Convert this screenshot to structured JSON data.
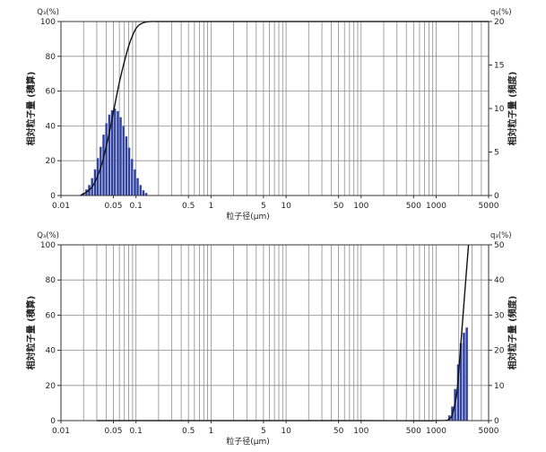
{
  "chart_data": [
    {
      "type": "bar",
      "x_scale": "log",
      "xlim": [
        0.01,
        5000
      ],
      "x_ticks": [
        0.01,
        0.05,
        0.1,
        0.5,
        1,
        5,
        10,
        50,
        100,
        500,
        1000,
        5000
      ],
      "x_tick_labels": [
        "0.01",
        "0.05",
        "0.1",
        "0.5",
        "1",
        "5",
        "10",
        "50",
        "100",
        "500",
        "1000",
        "5000"
      ],
      "xlabel": "粒子径(μm)",
      "y_left_label": "相対粒子量 (積算)",
      "y_left_unit": "Q₃(%)",
      "y_left_lim": [
        0,
        100
      ],
      "y_left_ticks": [
        0,
        20,
        40,
        60,
        80,
        100
      ],
      "y_right_label": "相対粒子量 (頻度)",
      "y_right_unit": "q₃(%)",
      "y_right_lim": [
        0,
        20
      ],
      "y_right_ticks": [
        0,
        5,
        10,
        15,
        20
      ],
      "grid": true,
      "series": [
        {
          "kind": "frequency_bars",
          "axis": "right",
          "x": [
            0.02,
            0.0218,
            0.0238,
            0.026,
            0.0284,
            0.031,
            0.0338,
            0.0369,
            0.0403,
            0.044,
            0.048,
            0.0524,
            0.0572,
            0.0624,
            0.0681,
            0.0743,
            0.0811,
            0.0885,
            0.0966,
            0.1054,
            0.115,
            0.1255,
            0.137
          ],
          "values": [
            0.3,
            0.7,
            1.2,
            2.0,
            3.0,
            4.3,
            5.6,
            7.0,
            8.3,
            9.3,
            9.8,
            10.0,
            9.7,
            9.0,
            8.0,
            6.8,
            5.5,
            4.2,
            3.0,
            2.0,
            1.2,
            0.6,
            0.3
          ]
        },
        {
          "kind": "cumulative_line",
          "axis": "left",
          "x": [
            0.018,
            0.022,
            0.026,
            0.03,
            0.035,
            0.04,
            0.045,
            0.05,
            0.055,
            0.06,
            0.07,
            0.08,
            0.09,
            0.1,
            0.11,
            0.125,
            0.14,
            0.16,
            0.18,
            0.2,
            0.3,
            1,
            10,
            100,
            1000,
            5000
          ],
          "values": [
            0,
            2,
            5,
            10,
            18,
            28,
            38,
            48,
            57,
            65,
            77,
            86,
            92,
            96,
            98,
            99.3,
            99.8,
            100,
            100,
            100,
            100,
            100,
            100,
            100,
            100,
            100
          ]
        }
      ]
    },
    {
      "type": "bar",
      "x_scale": "log",
      "xlim": [
        0.01,
        5000
      ],
      "x_ticks": [
        0.01,
        0.05,
        0.1,
        0.5,
        1,
        5,
        10,
        50,
        100,
        500,
        1000,
        5000
      ],
      "x_tick_labels": [
        "0.01",
        "0.05",
        "0.1",
        "0.5",
        "1",
        "5",
        "10",
        "50",
        "100",
        "500",
        "1000",
        "5000"
      ],
      "xlabel": "粒子径(μm)",
      "y_left_label": "相対粒子量 (積算)",
      "y_left_unit": "Q₃(%)",
      "y_left_lim": [
        0,
        100
      ],
      "y_left_ticks": [
        0,
        20,
        40,
        60,
        80,
        100
      ],
      "y_right_label": "相対粒子量 (頻度)",
      "y_right_unit": "q₃(%)",
      "y_right_lim": [
        0,
        50
      ],
      "y_right_ticks": [
        0,
        10,
        20,
        30,
        40,
        50
      ],
      "grid": true,
      "series": [
        {
          "kind": "frequency_bars",
          "axis": "right",
          "x": [
            1500,
            1640,
            1790,
            1960,
            2140,
            2340,
            2560
          ],
          "values": [
            1.5,
            4,
            9,
            16,
            22,
            25,
            26.5
          ]
        },
        {
          "kind": "cumulative_line",
          "axis": "left",
          "x": [
            0.03,
            1,
            100,
            1000,
            1500,
            1700,
            1900,
            2100,
            2300,
            2500,
            2700
          ],
          "values": [
            0,
            0,
            0,
            0,
            1,
            6,
            17,
            40,
            62,
            82,
            100
          ]
        }
      ]
    }
  ]
}
